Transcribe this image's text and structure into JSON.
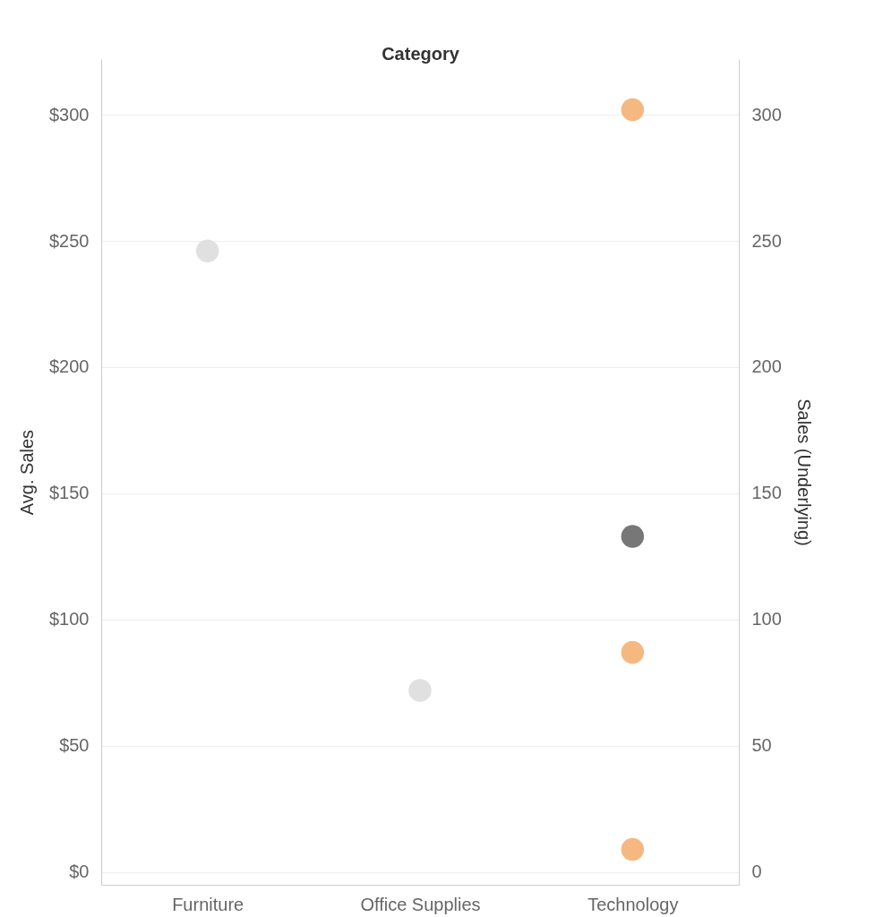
{
  "chart_data": {
    "type": "scatter",
    "xlabel": "Category",
    "ylabel": "Avg. Sales",
    "y2label": "Sales (Underlying)",
    "categories": [
      "Furniture",
      "Office Supplies",
      "Technology"
    ],
    "series": [
      {
        "values": [
          246,
          72,
          133
        ],
        "colors": [
          "#e0e0e0",
          "#e0e0e0",
          "#777777"
        ]
      },
      {
        "axis": "y2",
        "x": [
          "Technology",
          "Technology",
          "Technology"
        ],
        "values": [
          302,
          87,
          9
        ],
        "color": "#f5b880"
      }
    ],
    "ylim": [
      -5,
      322
    ],
    "yticks": [
      {
        "value": 0,
        "label": "$0"
      },
      {
        "value": 50,
        "label": "$50"
      },
      {
        "value": 100,
        "label": "$100"
      },
      {
        "value": 150,
        "label": "$150"
      },
      {
        "value": 200,
        "label": "$200"
      },
      {
        "value": 250,
        "label": "$250"
      },
      {
        "value": 300,
        "label": "$300"
      }
    ],
    "y2lim": [
      -5,
      322
    ],
    "y2ticks": [
      0,
      50,
      100,
      150,
      200,
      250,
      300
    ],
    "grid": "y",
    "marker": "circle"
  }
}
